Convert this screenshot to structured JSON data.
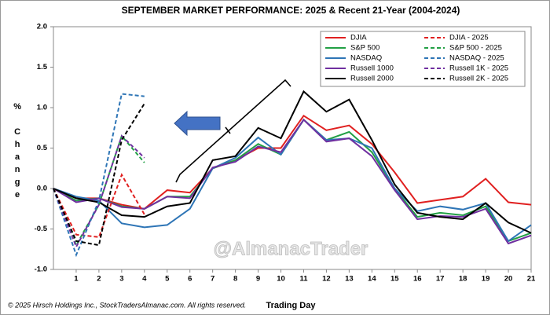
{
  "chart_data": {
    "type": "line",
    "title": "SEPTEMBER MARKET PERFORMANCE: 2025 & Recent 21-Year (2004-2024)",
    "x_label": "Trading Day",
    "y_label": "% Change",
    "watermark": "@AlmanacTrader",
    "footnote": "© 2025 Hirsch Holdings Inc., StockTradersAlmanac.com. All rights reserved.",
    "x": [
      0,
      1,
      2,
      3,
      4,
      5,
      6,
      7,
      8,
      9,
      10,
      11,
      12,
      13,
      14,
      15,
      16,
      17,
      18,
      19,
      20,
      21
    ],
    "xlim": [
      0,
      21
    ],
    "xticks": [
      1,
      2,
      3,
      4,
      5,
      6,
      7,
      8,
      9,
      10,
      11,
      12,
      13,
      14,
      15,
      16,
      17,
      18,
      19,
      20,
      21
    ],
    "ylim": [
      -1,
      2
    ],
    "yticks": [
      {
        "value": -1,
        "label": "-1.0"
      },
      {
        "value": -0.5,
        "label": "-0.5"
      },
      {
        "value": 0,
        "label": "0.0"
      },
      {
        "value": 0.5,
        "label": "0.5"
      },
      {
        "value": 1,
        "label": "1.0"
      },
      {
        "value": 1.5,
        "label": "1.5"
      },
      {
        "value": 2,
        "label": "2.0"
      }
    ],
    "grid": false,
    "legend": "upper right",
    "series": [
      {
        "name": "DJIA",
        "color": "#e02020",
        "dashed": false,
        "values": [
          0,
          -0.12,
          -0.12,
          -0.2,
          -0.25,
          -0.02,
          -0.05,
          0.25,
          0.35,
          0.5,
          0.5,
          0.9,
          0.72,
          0.78,
          0.55,
          0.2,
          -0.18,
          -0.14,
          -0.1,
          0.12,
          -0.17,
          -0.2
        ]
      },
      {
        "name": "S&P 500",
        "color": "#22a045",
        "dashed": false,
        "values": [
          0,
          -0.15,
          -0.12,
          -0.22,
          -0.25,
          -0.1,
          -0.1,
          0.25,
          0.35,
          0.55,
          0.42,
          0.85,
          0.6,
          0.7,
          0.45,
          0,
          -0.35,
          -0.3,
          -0.33,
          -0.22,
          -0.65,
          -0.55
        ]
      },
      {
        "name": "NASDAQ",
        "color": "#2e75b6",
        "dashed": false,
        "values": [
          0,
          -0.1,
          -0.15,
          -0.43,
          -0.48,
          -0.45,
          -0.25,
          0.25,
          0.38,
          0.63,
          0.42,
          0.85,
          0.6,
          0.62,
          0.5,
          0,
          -0.28,
          -0.22,
          -0.26,
          -0.18,
          -0.65,
          -0.45
        ]
      },
      {
        "name": "Russell 1000",
        "color": "#7030a0",
        "dashed": false,
        "values": [
          0,
          -0.17,
          -0.12,
          -0.23,
          -0.25,
          -0.1,
          -0.12,
          0.26,
          0.33,
          0.52,
          0.45,
          0.85,
          0.58,
          0.62,
          0.4,
          -0.02,
          -0.38,
          -0.34,
          -0.35,
          -0.25,
          -0.68,
          -0.58
        ]
      },
      {
        "name": "Russell 2000",
        "color": "#000000",
        "dashed": false,
        "values": [
          0,
          -0.12,
          -0.17,
          -0.33,
          -0.35,
          -0.22,
          -0.18,
          0.35,
          0.4,
          0.75,
          0.62,
          1.2,
          0.95,
          1.1,
          0.6,
          0.05,
          -0.3,
          -0.35,
          -0.38,
          -0.18,
          -0.42,
          -0.55
        ]
      },
      {
        "name": "DJIA - 2025",
        "color": "#e02020",
        "dashed": true,
        "values": [
          0,
          -0.57,
          -0.6,
          0.17,
          -0.32,
          null,
          null,
          null,
          null,
          null,
          null,
          null,
          null,
          null,
          null,
          null,
          null,
          null,
          null,
          null,
          null,
          null
        ]
      },
      {
        "name": "S&P 500 - 2025",
        "color": "#22a045",
        "dashed": true,
        "values": [
          0,
          -0.7,
          -0.2,
          0.65,
          0.32,
          null,
          null,
          null,
          null,
          null,
          null,
          null,
          null,
          null,
          null,
          null,
          null,
          null,
          null,
          null,
          null,
          null
        ]
      },
      {
        "name": "NASDAQ - 2025",
        "color": "#2e75b6",
        "dashed": true,
        "values": [
          0,
          -0.82,
          -0.15,
          1.17,
          1.14,
          null,
          null,
          null,
          null,
          null,
          null,
          null,
          null,
          null,
          null,
          null,
          null,
          null,
          null,
          null,
          null,
          null
        ]
      },
      {
        "name": "Russell 1K - 2025",
        "color": "#7030a0",
        "dashed": true,
        "values": [
          0,
          -0.72,
          -0.2,
          0.65,
          0.38,
          null,
          null,
          null,
          null,
          null,
          null,
          null,
          null,
          null,
          null,
          null,
          null,
          null,
          null,
          null,
          null,
          null
        ]
      },
      {
        "name": "Russell 2K - 2025",
        "color": "#000000",
        "dashed": true,
        "values": [
          0,
          -0.65,
          -0.7,
          0.6,
          1.05,
          null,
          null,
          null,
          null,
          null,
          null,
          null,
          null,
          null,
          null,
          null,
          null,
          null,
          null,
          null,
          null,
          null
        ]
      }
    ]
  }
}
